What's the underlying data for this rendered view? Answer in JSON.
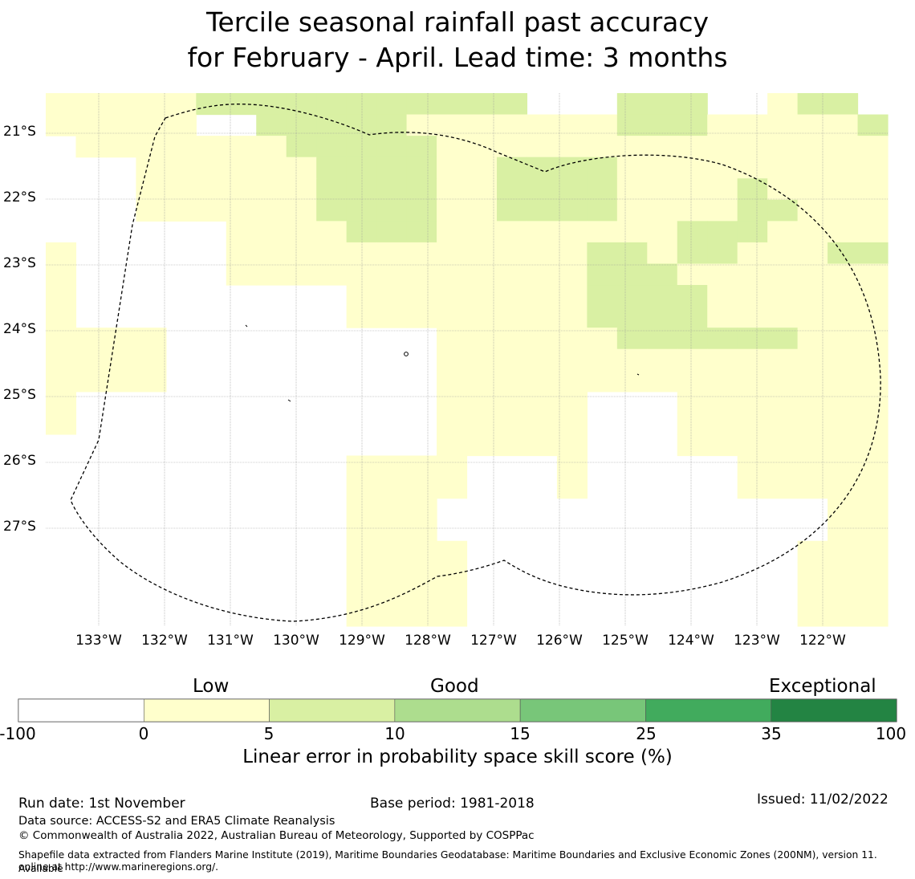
{
  "title": {
    "line1": "Tercile seasonal rainfall past accuracy",
    "line2": "for February - April. Lead time: 3 months"
  },
  "map": {
    "lat_labels": [
      "21°S",
      "22°S",
      "23°S",
      "24°S",
      "25°S",
      "26°S",
      "27°S"
    ],
    "lon_labels": [
      "133°W",
      "132°W",
      "131°W",
      "130°W",
      "129°W",
      "128°W",
      "127°W",
      "126°W",
      "125°W",
      "124°W",
      "123°W",
      "122°W"
    ],
    "grid_rows_north_to_south": [
      "1111122222222222000222001220",
      "1111100222221111111222111112",
      "0111111122222111111111111111",
      "0001111112222112222111111111",
      "0001111112222112222111121111",
      "0001111112222112222111122111",
      "0000001111222111111112221111",
      "1000001111111111112212211122",
      "1000001111111111112221111111",
      "1000000000111111112222111111",
      "1000000000111111112222111111",
      "1111000000000111111222222111",
      "1111000000000111111111111111",
      "1111000000000111111111111111",
      "1000000000000111110001111111",
      "1000000000000111110001111111",
      "0000000000000111110001111111",
      "0000000000111100010000011111",
      "0000000000111100010000011111",
      "0000000000111000000000000011",
      "0000000000111000000000000011",
      "0000000000111100000000000111",
      "0000000000111100000000000111",
      "0000000000111100000000000111",
      "0000000000111100000000000111"
    ]
  },
  "colorbar": {
    "categories": [
      "Low",
      "Good",
      "Exceptional"
    ],
    "ticks": [
      "-100",
      "0",
      "5",
      "10",
      "15",
      "25",
      "35",
      "100"
    ],
    "colors": [
      "#ffffff",
      "#ffffcc",
      "#d9f0a3",
      "#addd8e",
      "#78c679",
      "#41ab5d",
      "#238443"
    ],
    "label": "Linear error in probability space skill score (%)"
  },
  "footer": {
    "run_date": "Run date: 1st November",
    "base_period": "Base period: 1981-2018",
    "issued": "Issued: 11/02/2022",
    "data_source": "Data source: ACCESS-S2 and ERA5 Climate Reanalysis",
    "copyright": "© Commonwealth of Australia 2022, Australian Bureau of Meteorology, Supported by COSPPac",
    "shapefile_line1": "Shapefile data extracted from Flanders Marine Institute (2019), Maritime Boundaries Geodatabase: Maritime Boundaries and Exclusive Economic Zones (200NM), version 11. Available",
    "shapefile_line2": "online at http://www.marineregions.org/."
  }
}
